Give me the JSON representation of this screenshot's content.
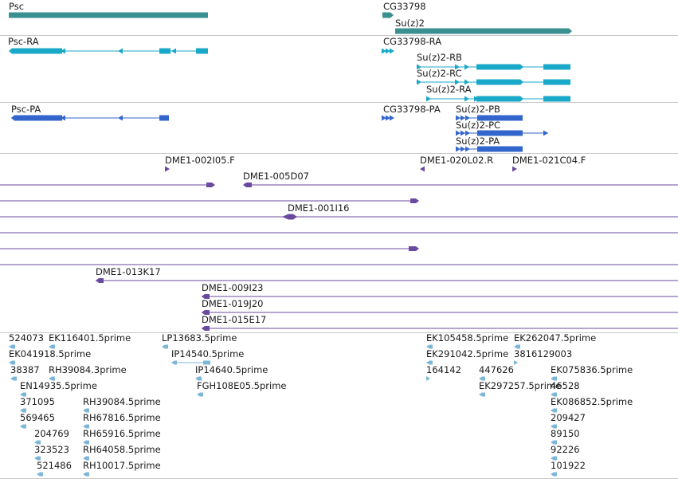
{
  "colors": {
    "gene": "#3a8f8f",
    "transcript_cyan": "#1aa8c8",
    "transcript_blue": "#3366cc",
    "clone": "#6a4aa0",
    "est": "#7eb6d8",
    "divider": "#c8c8c8"
  },
  "tracks": {
    "genes": [
      {
        "id": "g_psc",
        "label": "Psc"
      },
      {
        "id": "g_cg33798",
        "label": "CG33798"
      },
      {
        "id": "g_suz2",
        "label": "Su(z)2"
      }
    ],
    "transcripts_ra": [
      {
        "id": "t_psc_ra",
        "label": "Psc-RA"
      },
      {
        "id": "t_cg_ra",
        "label": "CG33798-RA"
      },
      {
        "id": "t_suz2_rb",
        "label": "Su(z)2-RB"
      },
      {
        "id": "t_suz2_rc",
        "label": "Su(z)2-RC"
      },
      {
        "id": "t_suz2_ra",
        "label": "Su(z)2-RA"
      }
    ],
    "proteins": [
      {
        "id": "p_psc_pa",
        "label": "Psc-PA"
      },
      {
        "id": "p_cg_pa",
        "label": "CG33798-PA"
      },
      {
        "id": "p_suz2_pb",
        "label": "Su(z)2-PB"
      },
      {
        "id": "p_suz2_pc",
        "label": "Su(z)2-PC"
      },
      {
        "id": "p_suz2_pa",
        "label": "Su(z)2-PA"
      }
    ],
    "clones": [
      {
        "id": "c1",
        "label": "DME1-002I05.F"
      },
      {
        "id": "c2",
        "label": "DME1-020L02.R"
      },
      {
        "id": "c3",
        "label": "DME1-021C04.F"
      },
      {
        "id": "c4",
        "label": "DME1-005D07"
      },
      {
        "id": "c5",
        "label": "DME1-001I16"
      },
      {
        "id": "c6",
        "label": "DME1-013K17"
      },
      {
        "id": "c7",
        "label": "DME1-009I23"
      },
      {
        "id": "c8",
        "label": "DME1-019J20"
      },
      {
        "id": "c9",
        "label": "DME1-015E17"
      }
    ],
    "ests": [
      {
        "id": "e1",
        "label": "524073"
      },
      {
        "id": "e2",
        "label": "EK116401.5prime"
      },
      {
        "id": "e3",
        "label": "EK041918.5prime"
      },
      {
        "id": "e4",
        "label": "38387"
      },
      {
        "id": "e5",
        "label": "RH39084.3prime"
      },
      {
        "id": "e6",
        "label": "EN14935.5prime"
      },
      {
        "id": "e7",
        "label": "371095"
      },
      {
        "id": "e8",
        "label": "RH39084.5prime"
      },
      {
        "id": "e9",
        "label": "569465"
      },
      {
        "id": "e10",
        "label": "RH67816.5prime"
      },
      {
        "id": "e11",
        "label": "204769"
      },
      {
        "id": "e12",
        "label": "RH65916.5prime"
      },
      {
        "id": "e13",
        "label": "323523"
      },
      {
        "id": "e14",
        "label": "RH64058.5prime"
      },
      {
        "id": "e15",
        "label": "521486"
      },
      {
        "id": "e16",
        "label": "RH10017.5prime"
      },
      {
        "id": "e17",
        "label": "LP13683.5prime"
      },
      {
        "id": "e18",
        "label": "IP14540.5prime"
      },
      {
        "id": "e19",
        "label": "IP14640.5prime"
      },
      {
        "id": "e20",
        "label": "FGH108E05.5prime"
      },
      {
        "id": "e21",
        "label": "EK105458.5prime"
      },
      {
        "id": "e22",
        "label": "EK262047.5prime"
      },
      {
        "id": "e23",
        "label": "EK291042.5prime"
      },
      {
        "id": "e24",
        "label": "3816129003"
      },
      {
        "id": "e25",
        "label": "164142"
      },
      {
        "id": "e26",
        "label": "447626"
      },
      {
        "id": "e27",
        "label": "EK075836.5prime"
      },
      {
        "id": "e28",
        "label": "EK297257.5prime"
      },
      {
        "id": "e29",
        "label": "46528"
      },
      {
        "id": "e30",
        "label": "EK086852.5prime"
      },
      {
        "id": "e31",
        "label": "209427"
      },
      {
        "id": "e32",
        "label": "89150"
      },
      {
        "id": "e33",
        "label": "92226"
      },
      {
        "id": "e34",
        "label": "101922"
      }
    ]
  }
}
